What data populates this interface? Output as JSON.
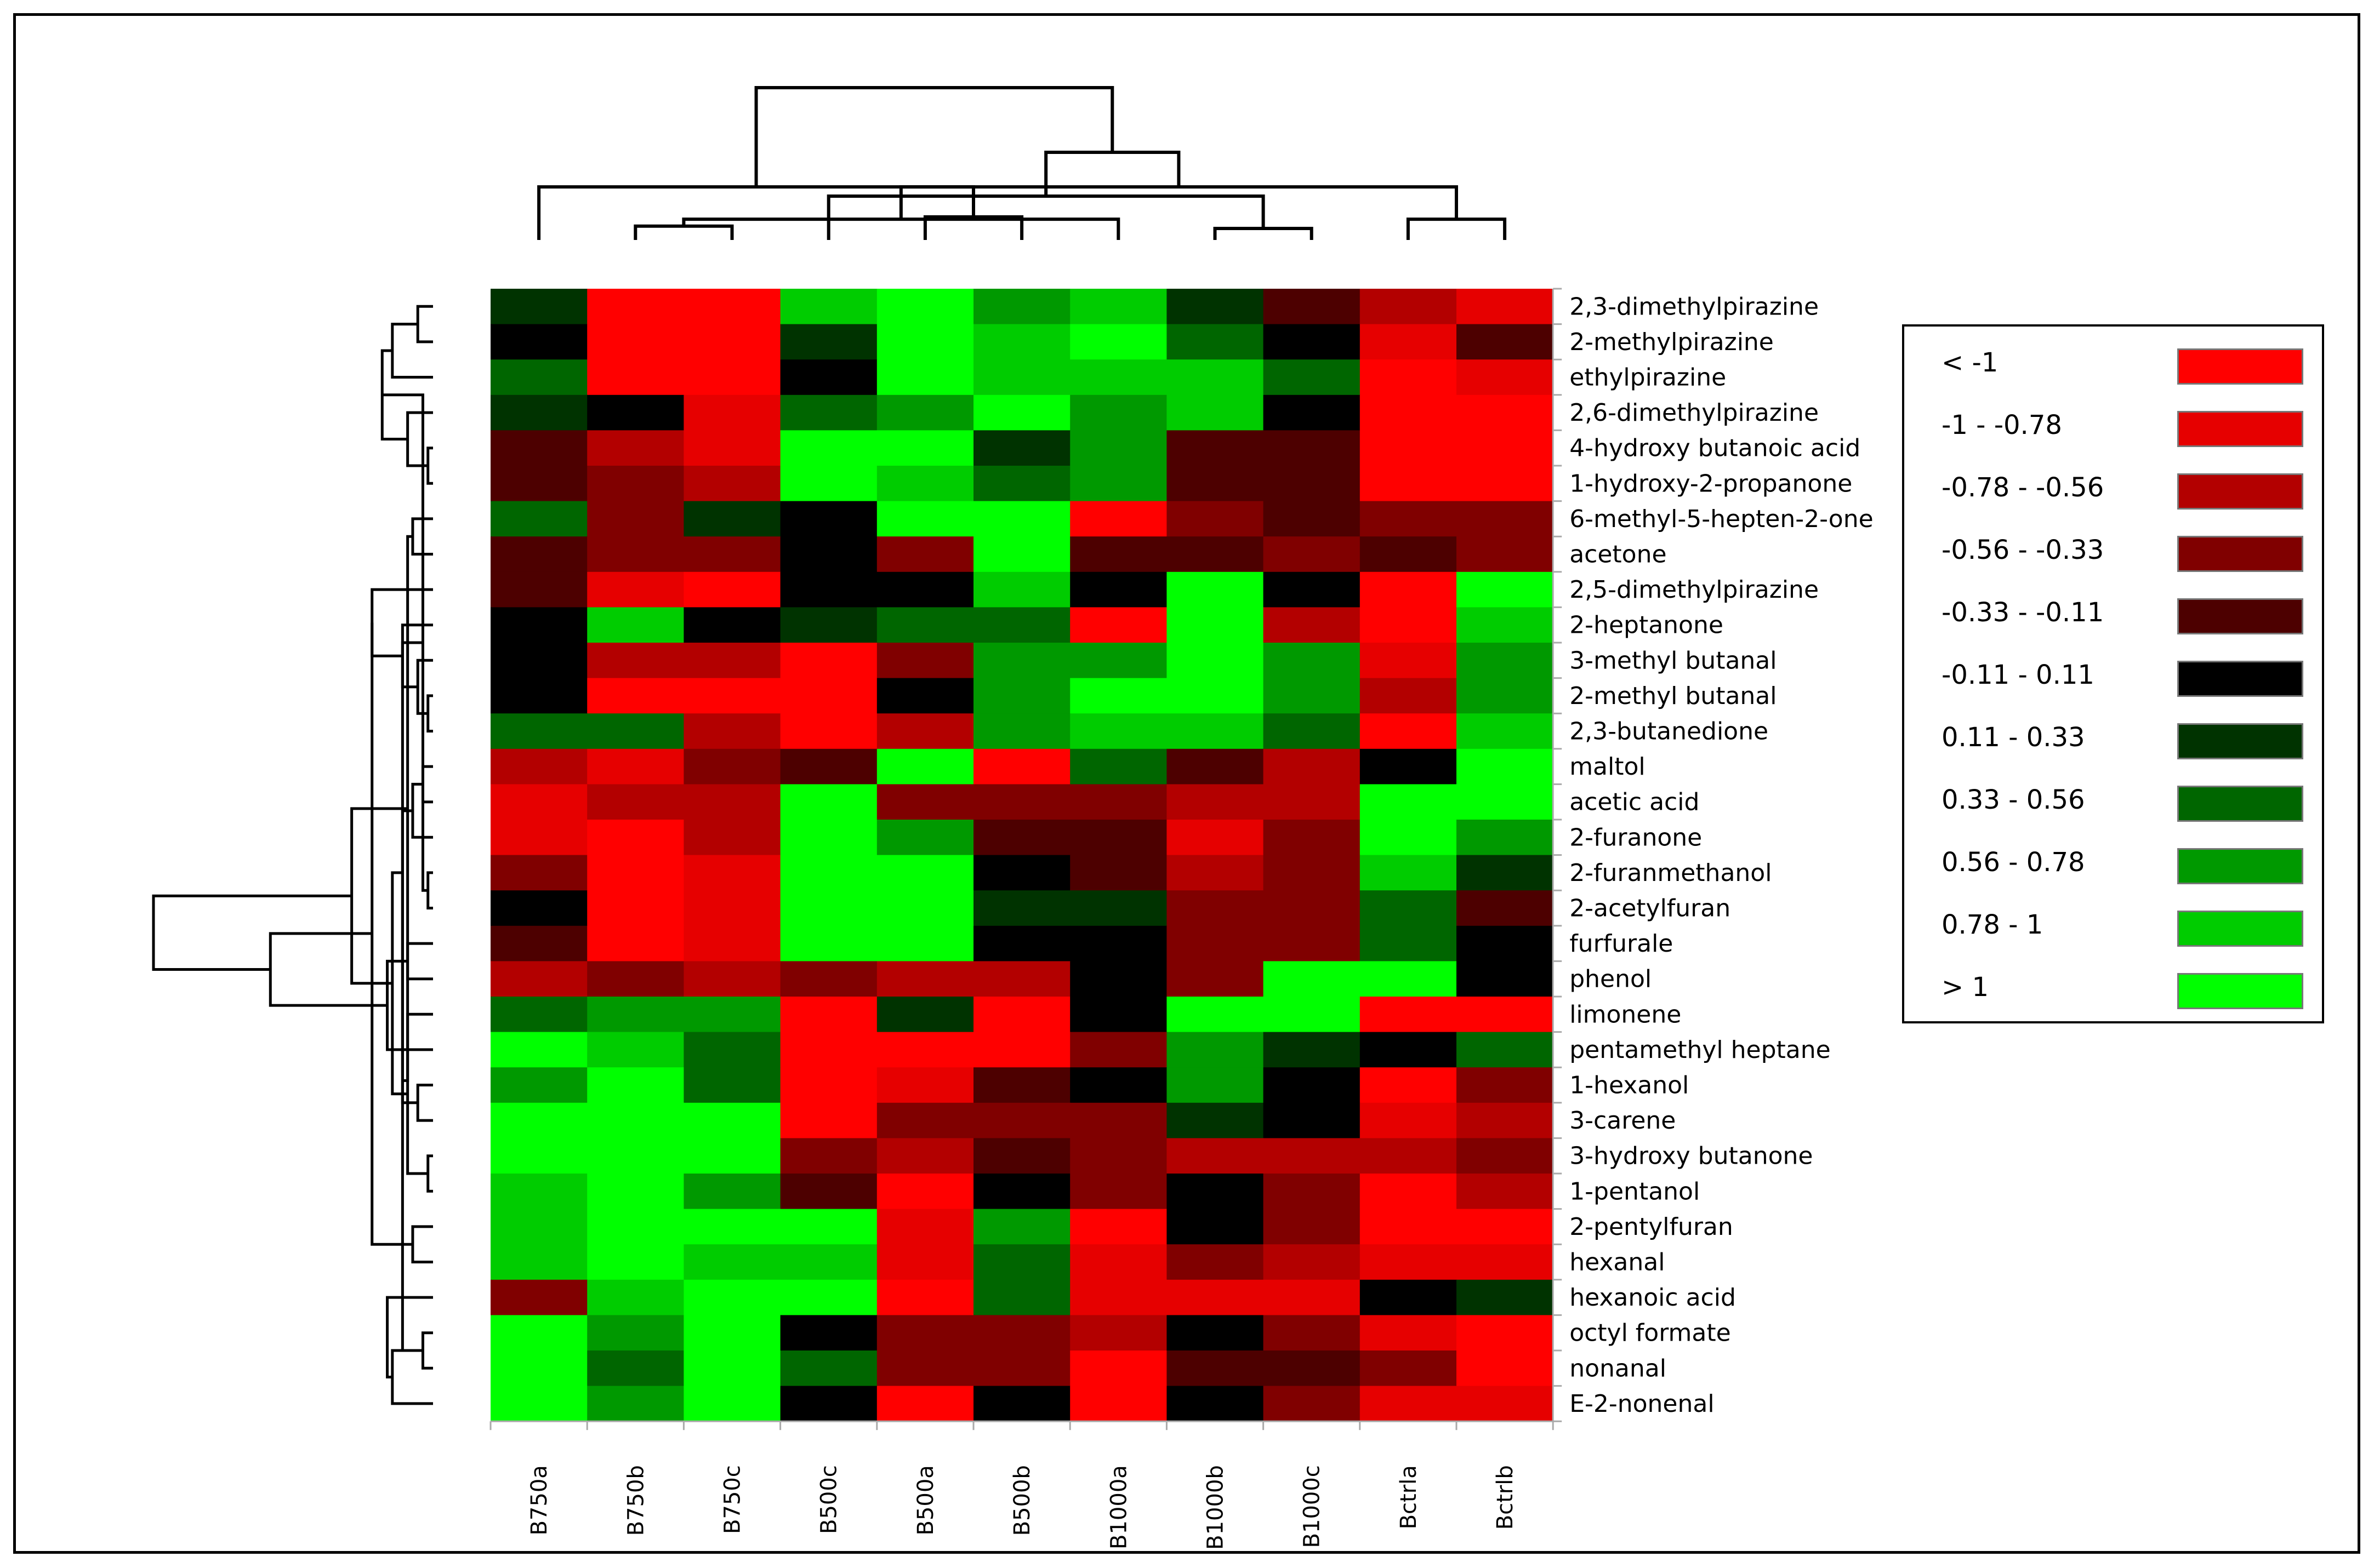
{
  "chart_data": {
    "type": "heatmap",
    "title": "",
    "columns": [
      "B750a",
      "B750b",
      "B750c",
      "B500c",
      "B500a",
      "B500b",
      "B1000a",
      "B1000b",
      "B1000c",
      "Bctrla",
      "Bctrlb"
    ],
    "rows": [
      "2,3-dimethylpirazine",
      "2-methylpirazine",
      "ethylpirazine",
      "2,6-dimethylpirazine",
      "4-hydroxy butanoic acid",
      "1-hydroxy-2-propanone",
      "6-methyl-5-hepten-2-one",
      "acetone",
      "2,5-dimethylpirazine",
      "2-heptanone",
      "3-methyl butanal",
      "2-methyl butanal",
      "2,3-butanedione",
      "maltol",
      "acetic acid",
      "2-furanone",
      "2-furanmethanol",
      "2-acetylfuran",
      "furfurale",
      "phenol",
      "limonene",
      "pentamethyl heptane",
      "1-hexanol",
      "3-carene",
      "3-hydroxy butanone",
      "1-pentanol",
      "2-pentylfuran",
      "hexanal",
      "hexanoic acid",
      "octyl formate",
      "nonanal",
      "E-2-nonenal"
    ],
    "value_range": [
      -1,
      1
    ],
    "values": [
      [
        0.2,
        -1.2,
        -1.2,
        0.9,
        1.2,
        0.7,
        0.9,
        0.2,
        -0.3,
        -0.7,
        -1.0
      ],
      [
        0,
        -1.2,
        -1.2,
        0.2,
        1.2,
        0.9,
        1.2,
        0.4,
        0,
        -1.0,
        -0.3
      ],
      [
        0.4,
        -1.2,
        -1.2,
        0,
        1.2,
        0.9,
        0.9,
        0.9,
        0.4,
        -1.2,
        -1.0
      ],
      [
        0.2,
        0,
        -1.0,
        0.4,
        0.7,
        1.2,
        0.7,
        0.9,
        0,
        -1.2,
        -1.2
      ],
      [
        -0.3,
        -0.7,
        -1.0,
        1.2,
        1.2,
        0.2,
        0.7,
        -0.3,
        -0.3,
        -1.2,
        -1.2
      ],
      [
        -0.3,
        -0.5,
        -0.7,
        1.2,
        0.9,
        0.4,
        0.7,
        -0.3,
        -0.3,
        -1.2,
        -1.2
      ],
      [
        0.4,
        -0.5,
        0.2,
        0,
        1.2,
        1.2,
        -1.2,
        -0.5,
        -0.3,
        -0.5,
        -0.5
      ],
      [
        -0.3,
        -0.5,
        -0.5,
        0,
        -0.5,
        1.2,
        -0.3,
        -0.3,
        -0.5,
        -0.3,
        -0.5
      ],
      [
        -0.3,
        -1.0,
        -1.2,
        0,
        0,
        0.9,
        0,
        1.2,
        0,
        -1.2,
        1.2
      ],
      [
        0,
        0.9,
        0,
        0.2,
        0.4,
        0.4,
        -1.2,
        1.2,
        -0.7,
        -1.2,
        0.9
      ],
      [
        0,
        -0.7,
        -0.7,
        -1.2,
        -0.5,
        0.7,
        0.7,
        1.2,
        0.7,
        -1.0,
        0.7
      ],
      [
        0,
        -1.2,
        -1.2,
        -1.2,
        0,
        0.7,
        1.2,
        1.2,
        0.7,
        -0.7,
        0.7
      ],
      [
        0.4,
        0.4,
        -0.7,
        -1.2,
        -0.7,
        0.7,
        0.9,
        0.9,
        0.4,
        -1.2,
        0.9
      ],
      [
        -0.7,
        -1.0,
        -0.5,
        -0.3,
        1.2,
        -1.2,
        0.4,
        -0.3,
        -0.7,
        0,
        1.2
      ],
      [
        -1.0,
        -0.7,
        -0.7,
        1.2,
        -0.5,
        -0.5,
        -0.5,
        -0.7,
        -0.7,
        1.2,
        1.2
      ],
      [
        -1.0,
        -1.2,
        -0.7,
        1.2,
        0.7,
        -0.3,
        -0.3,
        -1.0,
        -0.5,
        1.2,
        0.7
      ],
      [
        -0.5,
        -1.2,
        -1.0,
        1.2,
        1.2,
        0,
        -0.3,
        -0.7,
        -0.5,
        0.9,
        0.2
      ],
      [
        0,
        -1.2,
        -1.0,
        1.2,
        1.2,
        0.2,
        0.2,
        -0.5,
        -0.5,
        0.4,
        -0.3
      ],
      [
        -0.3,
        -1.2,
        -1.0,
        1.2,
        1.2,
        0,
        0,
        -0.5,
        -0.5,
        0.4,
        0
      ],
      [
        -0.7,
        -0.5,
        -0.7,
        -0.5,
        -0.7,
        -0.7,
        0,
        -0.5,
        1.2,
        1.2,
        0
      ],
      [
        0.4,
        0.7,
        0.7,
        -1.2,
        0.2,
        -1.2,
        0,
        1.2,
        1.2,
        -1.2,
        -1.2
      ],
      [
        1.2,
        0.9,
        0.4,
        -1.2,
        -1.2,
        -1.2,
        -0.5,
        0.7,
        0.2,
        0,
        0.4
      ],
      [
        0.7,
        1.2,
        0.4,
        -1.2,
        -1.0,
        -0.3,
        0,
        0.7,
        0,
        -1.2,
        -0.5
      ],
      [
        1.2,
        1.2,
        1.2,
        -1.2,
        -0.5,
        -0.5,
        -0.5,
        0.2,
        0,
        -1.0,
        -0.7
      ],
      [
        1.2,
        1.2,
        1.2,
        -0.5,
        -0.7,
        -0.3,
        -0.5,
        -0.7,
        -0.7,
        -0.7,
        -0.5
      ],
      [
        0.9,
        1.2,
        0.7,
        -0.3,
        -1.2,
        0,
        -0.5,
        0,
        -0.5,
        -1.2,
        -0.7
      ],
      [
        0.9,
        1.2,
        1.2,
        1.2,
        -1.0,
        0.7,
        -1.2,
        0,
        -0.5,
        -1.2,
        -1.2
      ],
      [
        0.9,
        1.2,
        0.9,
        0.9,
        -1.0,
        0.4,
        -1.0,
        -0.5,
        -0.7,
        -1.0,
        -1.0
      ],
      [
        -0.5,
        0.9,
        1.2,
        1.2,
        -1.2,
        0.4,
        -1.0,
        -1.0,
        -1.0,
        0,
        0.2
      ],
      [
        1.2,
        0.7,
        1.2,
        0,
        -0.5,
        -0.5,
        -0.7,
        0,
        -0.5,
        -1.0,
        -1.2
      ],
      [
        1.2,
        0.4,
        1.2,
        0.4,
        -0.5,
        -0.5,
        -1.2,
        -0.3,
        -0.3,
        -0.5,
        -1.2
      ],
      [
        1.2,
        0.7,
        1.2,
        0,
        -1.2,
        0,
        -1.2,
        0,
        -0.5,
        -1.0,
        -1.0
      ]
    ],
    "column_dendrogram": {
      "leaves": 11,
      "merges": [
        [
          1,
          2,
          0.06
        ],
        [
          4,
          5,
          0.1
        ],
        [
          7,
          8,
          0.05
        ],
        [
          6,
          11,
          0.09
        ],
        [
          9,
          10,
          0.09
        ],
        [
          3,
          13,
          0.19
        ],
        [
          15,
          14,
          0.23
        ],
        [
          0,
          12,
          0.23
        ],
        [
          16,
          17,
          0.38
        ],
        [
          19,
          18,
          0.66
        ]
      ]
    },
    "row_dendrogram": {
      "leaves": 32,
      "merges": [
        [
          4,
          5,
          0.01
        ],
        [
          0,
          1,
          0.03
        ],
        [
          3,
          32,
          0.05
        ],
        [
          11,
          12,
          0.01
        ],
        [
          10,
          35,
          0.03
        ],
        [
          13,
          14,
          0.02
        ],
        [
          7,
          6,
          0.04
        ],
        [
          9,
          36,
          0.06
        ],
        [
          2,
          33,
          0.08
        ],
        [
          40,
          34,
          0.1
        ],
        [
          16,
          17,
          0.01
        ],
        [
          24,
          25,
          0.01
        ],
        [
          41,
          42,
          0.02
        ],
        [
          22,
          23,
          0.03
        ],
        [
          18,
          19,
          0.05
        ],
        [
          8,
          39,
          0.12
        ],
        [
          29,
          30,
          0.02
        ],
        [
          26,
          27,
          0.04
        ],
        [
          15,
          37,
          0.04
        ],
        [
          43,
          20,
          0.05
        ],
        [
          44,
          45,
          0.06
        ],
        [
          48,
          50,
          0.06
        ],
        [
          31,
          48,
          0.08
        ],
        [
          38,
          53,
          0.05
        ],
        [
          52,
          51,
          0.08
        ],
        [
          21,
          46,
          0.09
        ],
        [
          49,
          47,
          0.12
        ],
        [
          56,
          55,
          0.16
        ],
        [
          57,
          58,
          0.32
        ],
        [
          59,
          60,
          0.55
        ],
        [
          28,
          54,
          0.09
        ]
      ]
    },
    "legend": [
      {
        "label": "< -1",
        "color": "#ff0000"
      },
      {
        "label": "-1 - -0.78",
        "color": "#e60000"
      },
      {
        "label": "-0.78 - -0.56",
        "color": "#b30000"
      },
      {
        "label": "-0.56 - -0.33",
        "color": "#800000"
      },
      {
        "label": "-0.33 - -0.11",
        "color": "#4d0000"
      },
      {
        "label": "-0.11 - 0.11",
        "color": "#000000"
      },
      {
        "label": "0.11 - 0.33",
        "color": "#003300"
      },
      {
        "label": "0.33 - 0.56",
        "color": "#006600"
      },
      {
        "label": "0.56 - 0.78",
        "color": "#009900"
      },
      {
        "label": "0.78 - 1",
        "color": "#00cc00"
      },
      {
        "label": "> 1",
        "color": "#00ff00"
      }
    ]
  }
}
